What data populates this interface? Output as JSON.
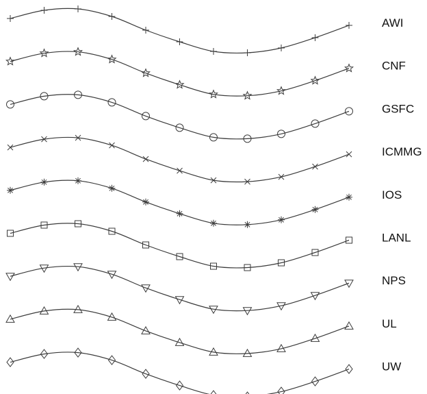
{
  "chart_data": {
    "type": "line",
    "title": "",
    "xlabel": "",
    "ylabel": "",
    "grid": false,
    "legend": "right",
    "line_color": "#3a3a3a",
    "x": [
      1,
      2,
      3,
      4,
      5,
      6,
      7,
      8,
      9,
      10,
      11
    ],
    "series": [
      {
        "name": "AWI",
        "marker": "plus",
        "values": [
          0.0,
          0.12,
          0.14,
          0.03,
          -0.17,
          -0.34,
          -0.48,
          -0.5,
          -0.43,
          -0.28,
          -0.1
        ]
      },
      {
        "name": "CNF",
        "marker": "star",
        "values": [
          0.0,
          0.12,
          0.14,
          0.03,
          -0.17,
          -0.34,
          -0.48,
          -0.5,
          -0.43,
          -0.28,
          -0.1
        ]
      },
      {
        "name": "GSFC",
        "marker": "circle",
        "values": [
          0.0,
          0.12,
          0.14,
          0.03,
          -0.17,
          -0.34,
          -0.48,
          -0.5,
          -0.43,
          -0.28,
          -0.1
        ]
      },
      {
        "name": "ICMMG",
        "marker": "x",
        "values": [
          0.0,
          0.12,
          0.14,
          0.03,
          -0.17,
          -0.34,
          -0.48,
          -0.5,
          -0.43,
          -0.28,
          -0.1
        ]
      },
      {
        "name": "IOS",
        "marker": "asterisk",
        "values": [
          0.0,
          0.12,
          0.14,
          0.03,
          -0.17,
          -0.34,
          -0.48,
          -0.5,
          -0.43,
          -0.28,
          -0.1
        ]
      },
      {
        "name": "LANL",
        "marker": "square",
        "values": [
          0.0,
          0.12,
          0.14,
          0.03,
          -0.17,
          -0.34,
          -0.48,
          -0.5,
          -0.43,
          -0.28,
          -0.1
        ]
      },
      {
        "name": "NPS",
        "marker": "triangle-down",
        "values": [
          0.0,
          0.12,
          0.14,
          0.03,
          -0.17,
          -0.34,
          -0.48,
          -0.5,
          -0.43,
          -0.28,
          -0.1
        ]
      },
      {
        "name": "UL",
        "marker": "triangle-up",
        "values": [
          0.0,
          0.12,
          0.14,
          0.03,
          -0.17,
          -0.34,
          -0.48,
          -0.5,
          -0.43,
          -0.28,
          -0.1
        ]
      },
      {
        "name": "UW",
        "marker": "diamond",
        "values": [
          0.0,
          0.12,
          0.14,
          0.03,
          -0.17,
          -0.34,
          -0.48,
          -0.5,
          -0.43,
          -0.28,
          -0.1
        ]
      }
    ]
  }
}
